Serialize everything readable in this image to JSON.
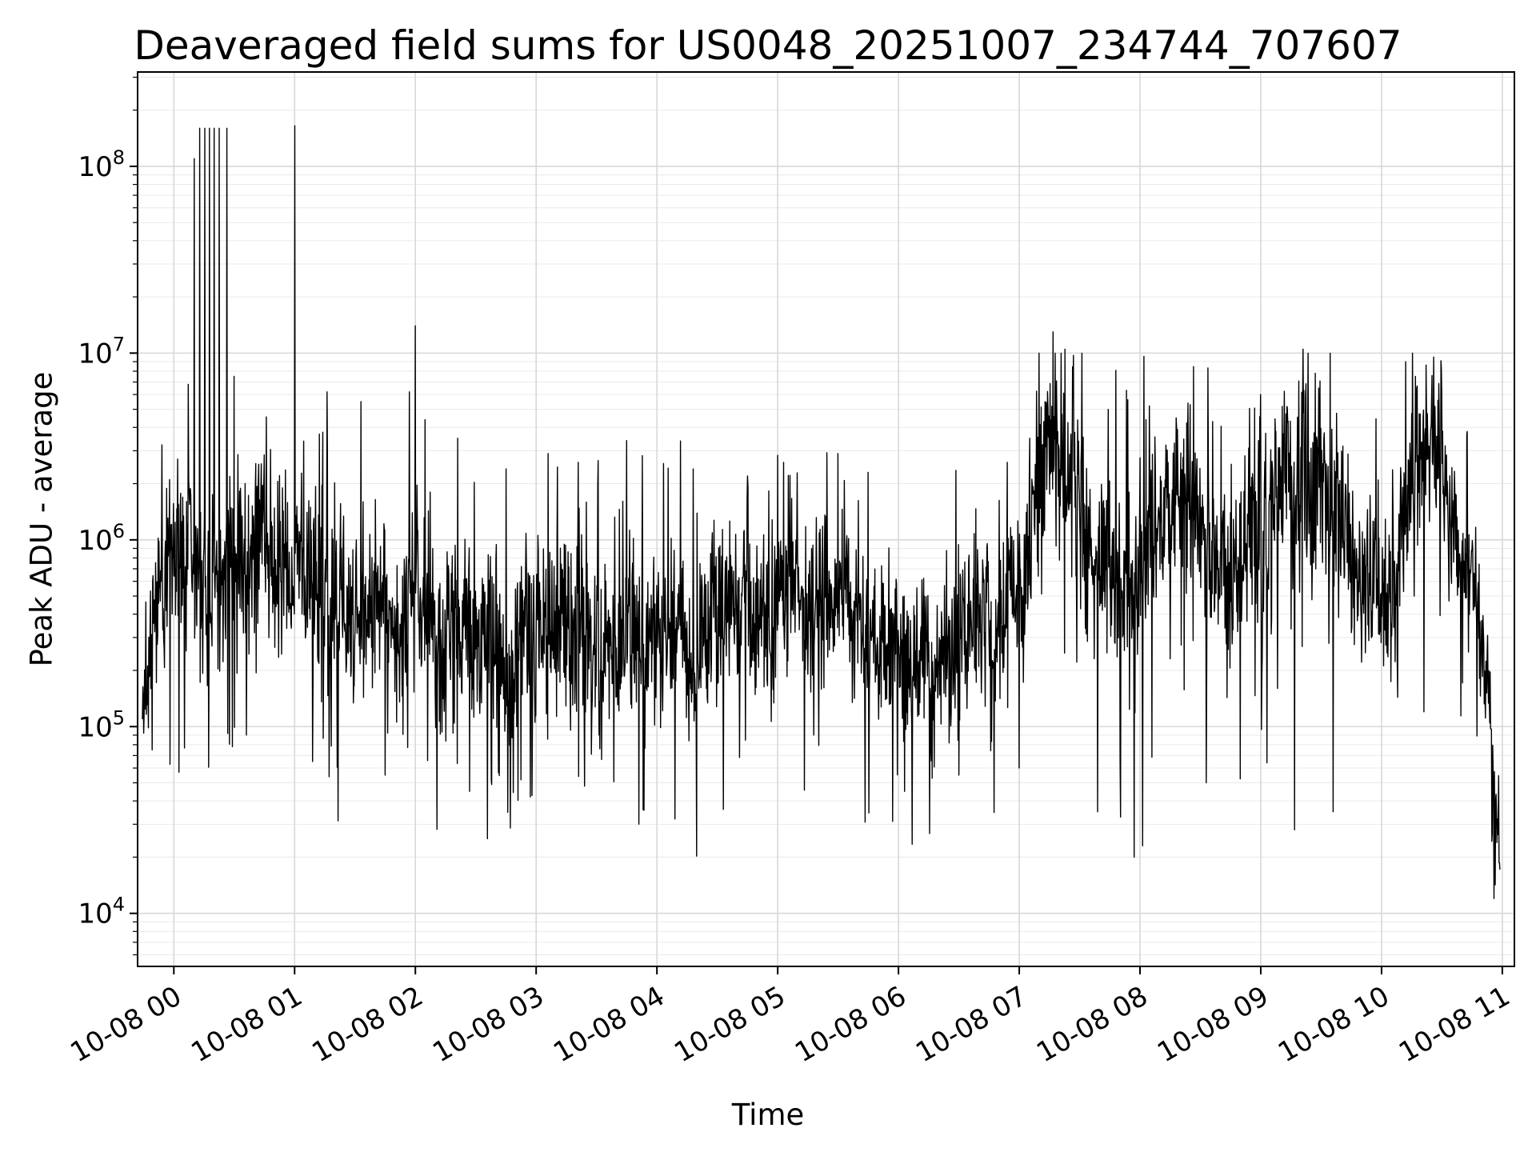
{
  "chart_data": {
    "type": "line",
    "title": "Deaveraged field sums for US0048_20251007_234744_707607",
    "xlabel": "Time",
    "ylabel": "Peak ADU - average",
    "y_scale": "log",
    "grid": true,
    "legend": "none",
    "line_color": "#000000",
    "background_color": "#ffffff",
    "grid_major_color": "#d8d8d8",
    "grid_minor_color": "#eaeaea",
    "xlim": [
      -0.3,
      11.1
    ],
    "ylim": [
      5200,
      320000000
    ],
    "x_tick_positions": [
      0,
      1,
      2,
      3,
      4,
      5,
      6,
      7,
      8,
      9,
      10,
      11
    ],
    "x_tick_labels": [
      "10-08 00",
      "10-08 01",
      "10-08 02",
      "10-08 03",
      "10-08 04",
      "10-08 05",
      "10-08 06",
      "10-08 07",
      "10-08 08",
      "10-08 09",
      "10-08 10",
      "10-08 11"
    ],
    "y_tick_exponents": [
      4,
      5,
      6,
      7,
      8
    ],
    "y_tick_base": "10",
    "series": {
      "name": "peak-adu-average",
      "t_range": [
        -0.26,
        10.98
      ],
      "n_points": 3200,
      "seed": 48,
      "envelope": [
        {
          "t": -0.26,
          "m": 5.15,
          "s": 0.25
        },
        {
          "t": -0.05,
          "m": 5.95,
          "s": 0.45
        },
        {
          "t": 0.3,
          "m": 5.9,
          "s": 0.5
        },
        {
          "t": 0.8,
          "m": 5.95,
          "s": 0.5
        },
        {
          "t": 1.2,
          "m": 5.75,
          "s": 0.48
        },
        {
          "t": 1.8,
          "m": 5.7,
          "s": 0.45
        },
        {
          "t": 2.3,
          "m": 5.6,
          "s": 0.5
        },
        {
          "t": 2.9,
          "m": 5.5,
          "s": 0.52
        },
        {
          "t": 3.5,
          "m": 5.45,
          "s": 0.52
        },
        {
          "t": 4.1,
          "m": 5.5,
          "s": 0.5
        },
        {
          "t": 4.7,
          "m": 5.6,
          "s": 0.45
        },
        {
          "t": 5.2,
          "m": 5.7,
          "s": 0.42
        },
        {
          "t": 5.6,
          "m": 5.75,
          "s": 0.4
        },
        {
          "t": 5.95,
          "m": 5.45,
          "s": 0.45
        },
        {
          "t": 6.3,
          "m": 5.35,
          "s": 0.45
        },
        {
          "t": 6.7,
          "m": 5.55,
          "s": 0.48
        },
        {
          "t": 7.05,
          "m": 5.8,
          "s": 0.5
        },
        {
          "t": 7.3,
          "m": 6.55,
          "s": 0.45
        },
        {
          "t": 7.55,
          "m": 6.1,
          "s": 0.5
        },
        {
          "t": 7.95,
          "m": 5.85,
          "s": 0.6
        },
        {
          "t": 8.35,
          "m": 6.15,
          "s": 0.5
        },
        {
          "t": 8.75,
          "m": 5.95,
          "s": 0.5
        },
        {
          "t": 9.15,
          "m": 6.1,
          "s": 0.55
        },
        {
          "t": 9.4,
          "m": 6.35,
          "s": 0.5
        },
        {
          "t": 9.75,
          "m": 5.85,
          "s": 0.5
        },
        {
          "t": 10.05,
          "m": 5.95,
          "s": 0.5
        },
        {
          "t": 10.3,
          "m": 6.45,
          "s": 0.45
        },
        {
          "t": 10.55,
          "m": 6.2,
          "s": 0.4
        },
        {
          "t": 10.75,
          "m": 5.95,
          "s": 0.35
        },
        {
          "t": 10.88,
          "m": 5.2,
          "s": 0.3
        },
        {
          "t": 10.98,
          "m": 4.15,
          "s": 0.2
        }
      ],
      "spikes_up": [
        {
          "t": 0.12,
          "value": 6800000.0
        },
        {
          "t": 0.17,
          "value": 110000000.0
        },
        {
          "t": 0.215,
          "value": 160000000.0
        },
        {
          "t": 0.255,
          "value": 160000000.0
        },
        {
          "t": 0.295,
          "value": 160000000.0
        },
        {
          "t": 0.335,
          "value": 160000000.0
        },
        {
          "t": 0.375,
          "value": 160000000.0
        },
        {
          "t": 0.44,
          "value": 160000000.0
        },
        {
          "t": 0.5,
          "value": 7500000.0
        },
        {
          "t": 1.0,
          "value": 165000000.0
        },
        {
          "t": 1.27,
          "value": 6200000.0
        },
        {
          "t": 1.55,
          "value": 5500000.0
        },
        {
          "t": 1.95,
          "value": 6200000.0
        },
        {
          "t": 2.0,
          "value": 14000000.0
        },
        {
          "t": 2.08,
          "value": 4400000.0
        },
        {
          "t": 2.35,
          "value": 3500000.0
        },
        {
          "t": 2.75,
          "value": 2400000.0
        },
        {
          "t": 3.1,
          "value": 2900000.0
        },
        {
          "t": 3.35,
          "value": 2600000.0
        },
        {
          "t": 3.75,
          "value": 3400000.0
        },
        {
          "t": 4.3,
          "value": 2400000.0
        },
        {
          "t": 4.75,
          "value": 2200000.0
        },
        {
          "t": 5.05,
          "value": 2600000.0
        },
        {
          "t": 5.5,
          "value": 2900000.0
        },
        {
          "t": 5.75,
          "value": 2300000.0
        },
        {
          "t": 6.9,
          "value": 2600000.0
        },
        {
          "t": 7.28,
          "value": 13000000.0
        },
        {
          "t": 7.38,
          "value": 10500000.0
        },
        {
          "t": 8.05,
          "value": 4400000.0
        },
        {
          "t": 8.3,
          "value": 4500000.0
        },
        {
          "t": 8.6,
          "value": 4300000.0
        },
        {
          "t": 9.0,
          "value": 6000000.0
        },
        {
          "t": 9.35,
          "value": 10500000.0
        },
        {
          "t": 9.45,
          "value": 7800000.0
        },
        {
          "t": 10.2,
          "value": 9000000.0
        },
        {
          "t": 10.28,
          "value": 7500000.0
        },
        {
          "t": 10.5,
          "value": 6000000.0
        }
      ],
      "spikes_down": [
        {
          "t": -0.18,
          "value": 75000.0
        },
        {
          "t": 0.6,
          "value": 90000.0
        },
        {
          "t": 1.15,
          "value": 65000.0
        },
        {
          "t": 1.75,
          "value": 55000.0
        },
        {
          "t": 2.45,
          "value": 45000.0
        },
        {
          "t": 2.95,
          "value": 42000.0
        },
        {
          "t": 3.4,
          "value": 48000.0
        },
        {
          "t": 3.85,
          "value": 30000.0
        },
        {
          "t": 4.15,
          "value": 32000.0
        },
        {
          "t": 4.55,
          "value": 36000.0
        },
        {
          "t": 5.3,
          "value": 90000.0
        },
        {
          "t": 6.05,
          "value": 45000.0
        },
        {
          "t": 6.5,
          "value": 55000.0
        },
        {
          "t": 7.0,
          "value": 60000.0
        },
        {
          "t": 7.65,
          "value": 35000.0
        },
        {
          "t": 7.95,
          "value": 20000.0
        },
        {
          "t": 8.02,
          "value": 23000.0
        },
        {
          "t": 8.55,
          "value": 50000.0
        },
        {
          "t": 9.28,
          "value": 28000.0
        },
        {
          "t": 9.6,
          "value": 35000.0
        },
        {
          "t": 10.35,
          "value": 120000.0
        },
        {
          "t": 10.93,
          "value": 12000.0
        }
      ]
    }
  }
}
